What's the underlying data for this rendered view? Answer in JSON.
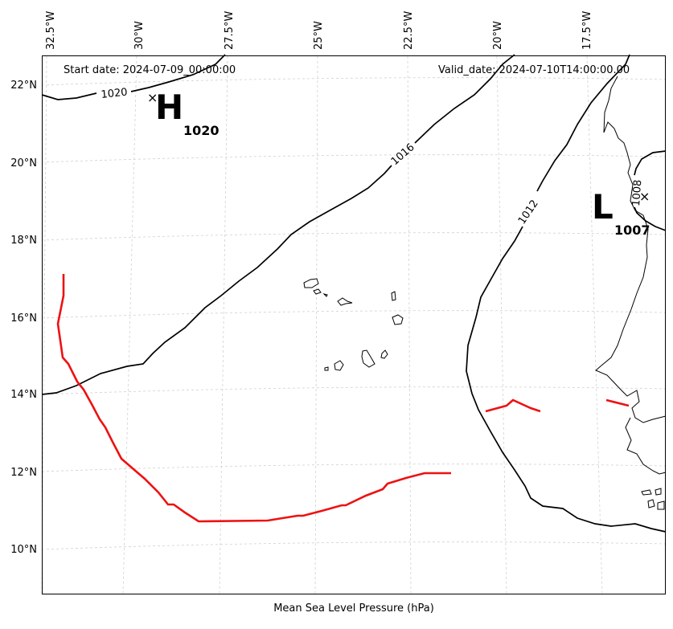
{
  "map": {
    "start_date": "Start date: 2024-07-09_00:00:00",
    "valid_date": "Valid_date: 2024-07-10T14:00:00.00",
    "caption": "Mean Sea Level Pressure (hPa)",
    "lon_labels": [
      "32.5°W",
      "30°W",
      "27.5°W",
      "25°W",
      "22.5°W",
      "20°W",
      "17.5°W"
    ],
    "lat_labels": [
      "22°N",
      "20°N",
      "18°N",
      "16°N",
      "14°N",
      "12°N",
      "10°N"
    ],
    "contour_labels": {
      "c1020": "1020",
      "c1016": "1016",
      "c1012": "1012",
      "c1008": "1008"
    },
    "high": {
      "letter": "H",
      "value": "1020",
      "marker": "×"
    },
    "low": {
      "letter": "L",
      "value": "1007",
      "marker": "×"
    },
    "colors": {
      "isobar": "#000000",
      "front": "#ee1111",
      "grid": "#cccccc",
      "frame": "#000000"
    }
  }
}
